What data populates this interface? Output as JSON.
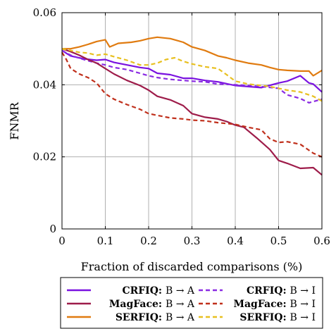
{
  "chart_data": {
    "type": "line",
    "title": "",
    "xlabel": "Fraction of discarded comparisons (%)",
    "ylabel": "FNMR",
    "xlim": [
      0,
      0.6
    ],
    "ylim": [
      0,
      0.06
    ],
    "x_ticks": [
      "0",
      "0.1",
      "0.2",
      "0.3",
      "0.4",
      "0.5",
      "0.6"
    ],
    "y_ticks": [
      "0",
      "0.02",
      "0.04",
      "0.06"
    ],
    "grid": true,
    "legend_position": "bottom",
    "series": [
      {
        "name": "CRFIQ",
        "direction": "B → A",
        "color": "#7a12e0",
        "dash": "solid",
        "x": [
          0,
          0.02,
          0.05,
          0.08,
          0.1,
          0.12,
          0.15,
          0.18,
          0.2,
          0.22,
          0.25,
          0.28,
          0.3,
          0.33,
          0.36,
          0.4,
          0.43,
          0.46,
          0.5,
          0.52,
          0.55,
          0.57,
          0.58,
          0.6
        ],
        "y": [
          0.0495,
          0.048,
          0.0472,
          0.0468,
          0.047,
          0.0462,
          0.0455,
          0.0448,
          0.0445,
          0.0432,
          0.0428,
          0.0418,
          0.0418,
          0.0412,
          0.0408,
          0.0398,
          0.0395,
          0.0392,
          0.0405,
          0.041,
          0.0425,
          0.0405,
          0.0402,
          0.038
        ]
      },
      {
        "name": "CRFIQ",
        "direction": "B → I",
        "color": "#8a2be2",
        "dash": "dashed",
        "x": [
          0,
          0.02,
          0.05,
          0.08,
          0.1,
          0.12,
          0.15,
          0.18,
          0.2,
          0.22,
          0.25,
          0.28,
          0.3,
          0.33,
          0.36,
          0.4,
          0.43,
          0.46,
          0.5,
          0.52,
          0.55,
          0.57,
          0.6
        ],
        "y": [
          0.0495,
          0.0482,
          0.047,
          0.046,
          0.0455,
          0.0448,
          0.0442,
          0.0432,
          0.0425,
          0.042,
          0.0415,
          0.0412,
          0.041,
          0.0408,
          0.0402,
          0.04,
          0.0398,
          0.0395,
          0.039,
          0.0372,
          0.0362,
          0.035,
          0.036
        ]
      },
      {
        "name": "MagFace",
        "direction": "B → A",
        "color": "#9e1c4a",
        "dash": "solid",
        "x": [
          0,
          0.02,
          0.04,
          0.06,
          0.08,
          0.1,
          0.12,
          0.15,
          0.18,
          0.2,
          0.22,
          0.25,
          0.28,
          0.3,
          0.33,
          0.36,
          0.38,
          0.4,
          0.42,
          0.45,
          0.48,
          0.5,
          0.52,
          0.55,
          0.58,
          0.6
        ],
        "y": [
          0.05,
          0.0492,
          0.0482,
          0.047,
          0.046,
          0.0445,
          0.043,
          0.0412,
          0.0398,
          0.0385,
          0.0368,
          0.0358,
          0.0342,
          0.032,
          0.031,
          0.0305,
          0.0298,
          0.0288,
          0.0282,
          0.0252,
          0.022,
          0.019,
          0.0182,
          0.0168,
          0.017,
          0.015
        ]
      },
      {
        "name": "MagFace",
        "direction": "B → I",
        "color": "#c0301c",
        "dash": "dashed",
        "x": [
          0,
          0.01,
          0.02,
          0.04,
          0.06,
          0.08,
          0.1,
          0.12,
          0.15,
          0.18,
          0.2,
          0.22,
          0.25,
          0.28,
          0.3,
          0.33,
          0.36,
          0.4,
          0.43,
          0.46,
          0.48,
          0.5,
          0.52,
          0.55,
          0.58,
          0.6
        ],
        "y": [
          0.049,
          0.047,
          0.0445,
          0.043,
          0.042,
          0.0405,
          0.0375,
          0.036,
          0.0345,
          0.0332,
          0.032,
          0.0315,
          0.0308,
          0.0305,
          0.0302,
          0.03,
          0.0295,
          0.029,
          0.0282,
          0.0275,
          0.025,
          0.024,
          0.0242,
          0.0235,
          0.021,
          0.02
        ]
      },
      {
        "name": "SERFIQ",
        "direction": "B → A",
        "color": "#e07b10",
        "dash": "solid",
        "x": [
          0,
          0.02,
          0.04,
          0.06,
          0.08,
          0.1,
          0.11,
          0.13,
          0.16,
          0.18,
          0.2,
          0.22,
          0.25,
          0.28,
          0.3,
          0.33,
          0.36,
          0.38,
          0.4,
          0.43,
          0.46,
          0.48,
          0.5,
          0.52,
          0.55,
          0.57,
          0.58,
          0.6
        ],
        "y": [
          0.05,
          0.05,
          0.0505,
          0.0512,
          0.052,
          0.0525,
          0.0505,
          0.0515,
          0.0518,
          0.0522,
          0.0528,
          0.0532,
          0.0528,
          0.0518,
          0.0505,
          0.0495,
          0.048,
          0.0475,
          0.0468,
          0.046,
          0.0455,
          0.0448,
          0.0442,
          0.044,
          0.0438,
          0.0438,
          0.0425,
          0.044
        ]
      },
      {
        "name": "SERFIQ",
        "direction": "B → I",
        "color": "#e8c020",
        "dash": "dashed",
        "x": [
          0,
          0.02,
          0.04,
          0.06,
          0.08,
          0.1,
          0.12,
          0.15,
          0.18,
          0.2,
          0.22,
          0.24,
          0.26,
          0.28,
          0.3,
          0.33,
          0.36,
          0.38,
          0.4,
          0.43,
          0.46,
          0.48,
          0.5,
          0.52,
          0.55,
          0.58,
          0.6
        ],
        "y": [
          0.05,
          0.0495,
          0.049,
          0.0488,
          0.0482,
          0.0485,
          0.0478,
          0.0468,
          0.0455,
          0.0455,
          0.046,
          0.047,
          0.0475,
          0.0465,
          0.0458,
          0.045,
          0.0445,
          0.0428,
          0.041,
          0.0402,
          0.0398,
          0.0395,
          0.039,
          0.0385,
          0.038,
          0.0368,
          0.0355
        ]
      }
    ],
    "legend": [
      {
        "name": "CRFIQ:",
        "direction": "B → A",
        "color": "#7a12e0",
        "dash": "solid"
      },
      {
        "name": "CRFIQ:",
        "direction": "B → I",
        "color": "#8a2be2",
        "dash": "dashed"
      },
      {
        "name": "MagFace:",
        "direction": "B → A",
        "color": "#9e1c4a",
        "dash": "solid"
      },
      {
        "name": "MagFace:",
        "direction": "B → I",
        "color": "#c0301c",
        "dash": "dashed"
      },
      {
        "name": "SERFIQ:",
        "direction": "B → A",
        "color": "#e07b10",
        "dash": "solid"
      },
      {
        "name": "SERFIQ:",
        "direction": "B → I",
        "color": "#e8c020",
        "dash": "dashed"
      }
    ]
  }
}
